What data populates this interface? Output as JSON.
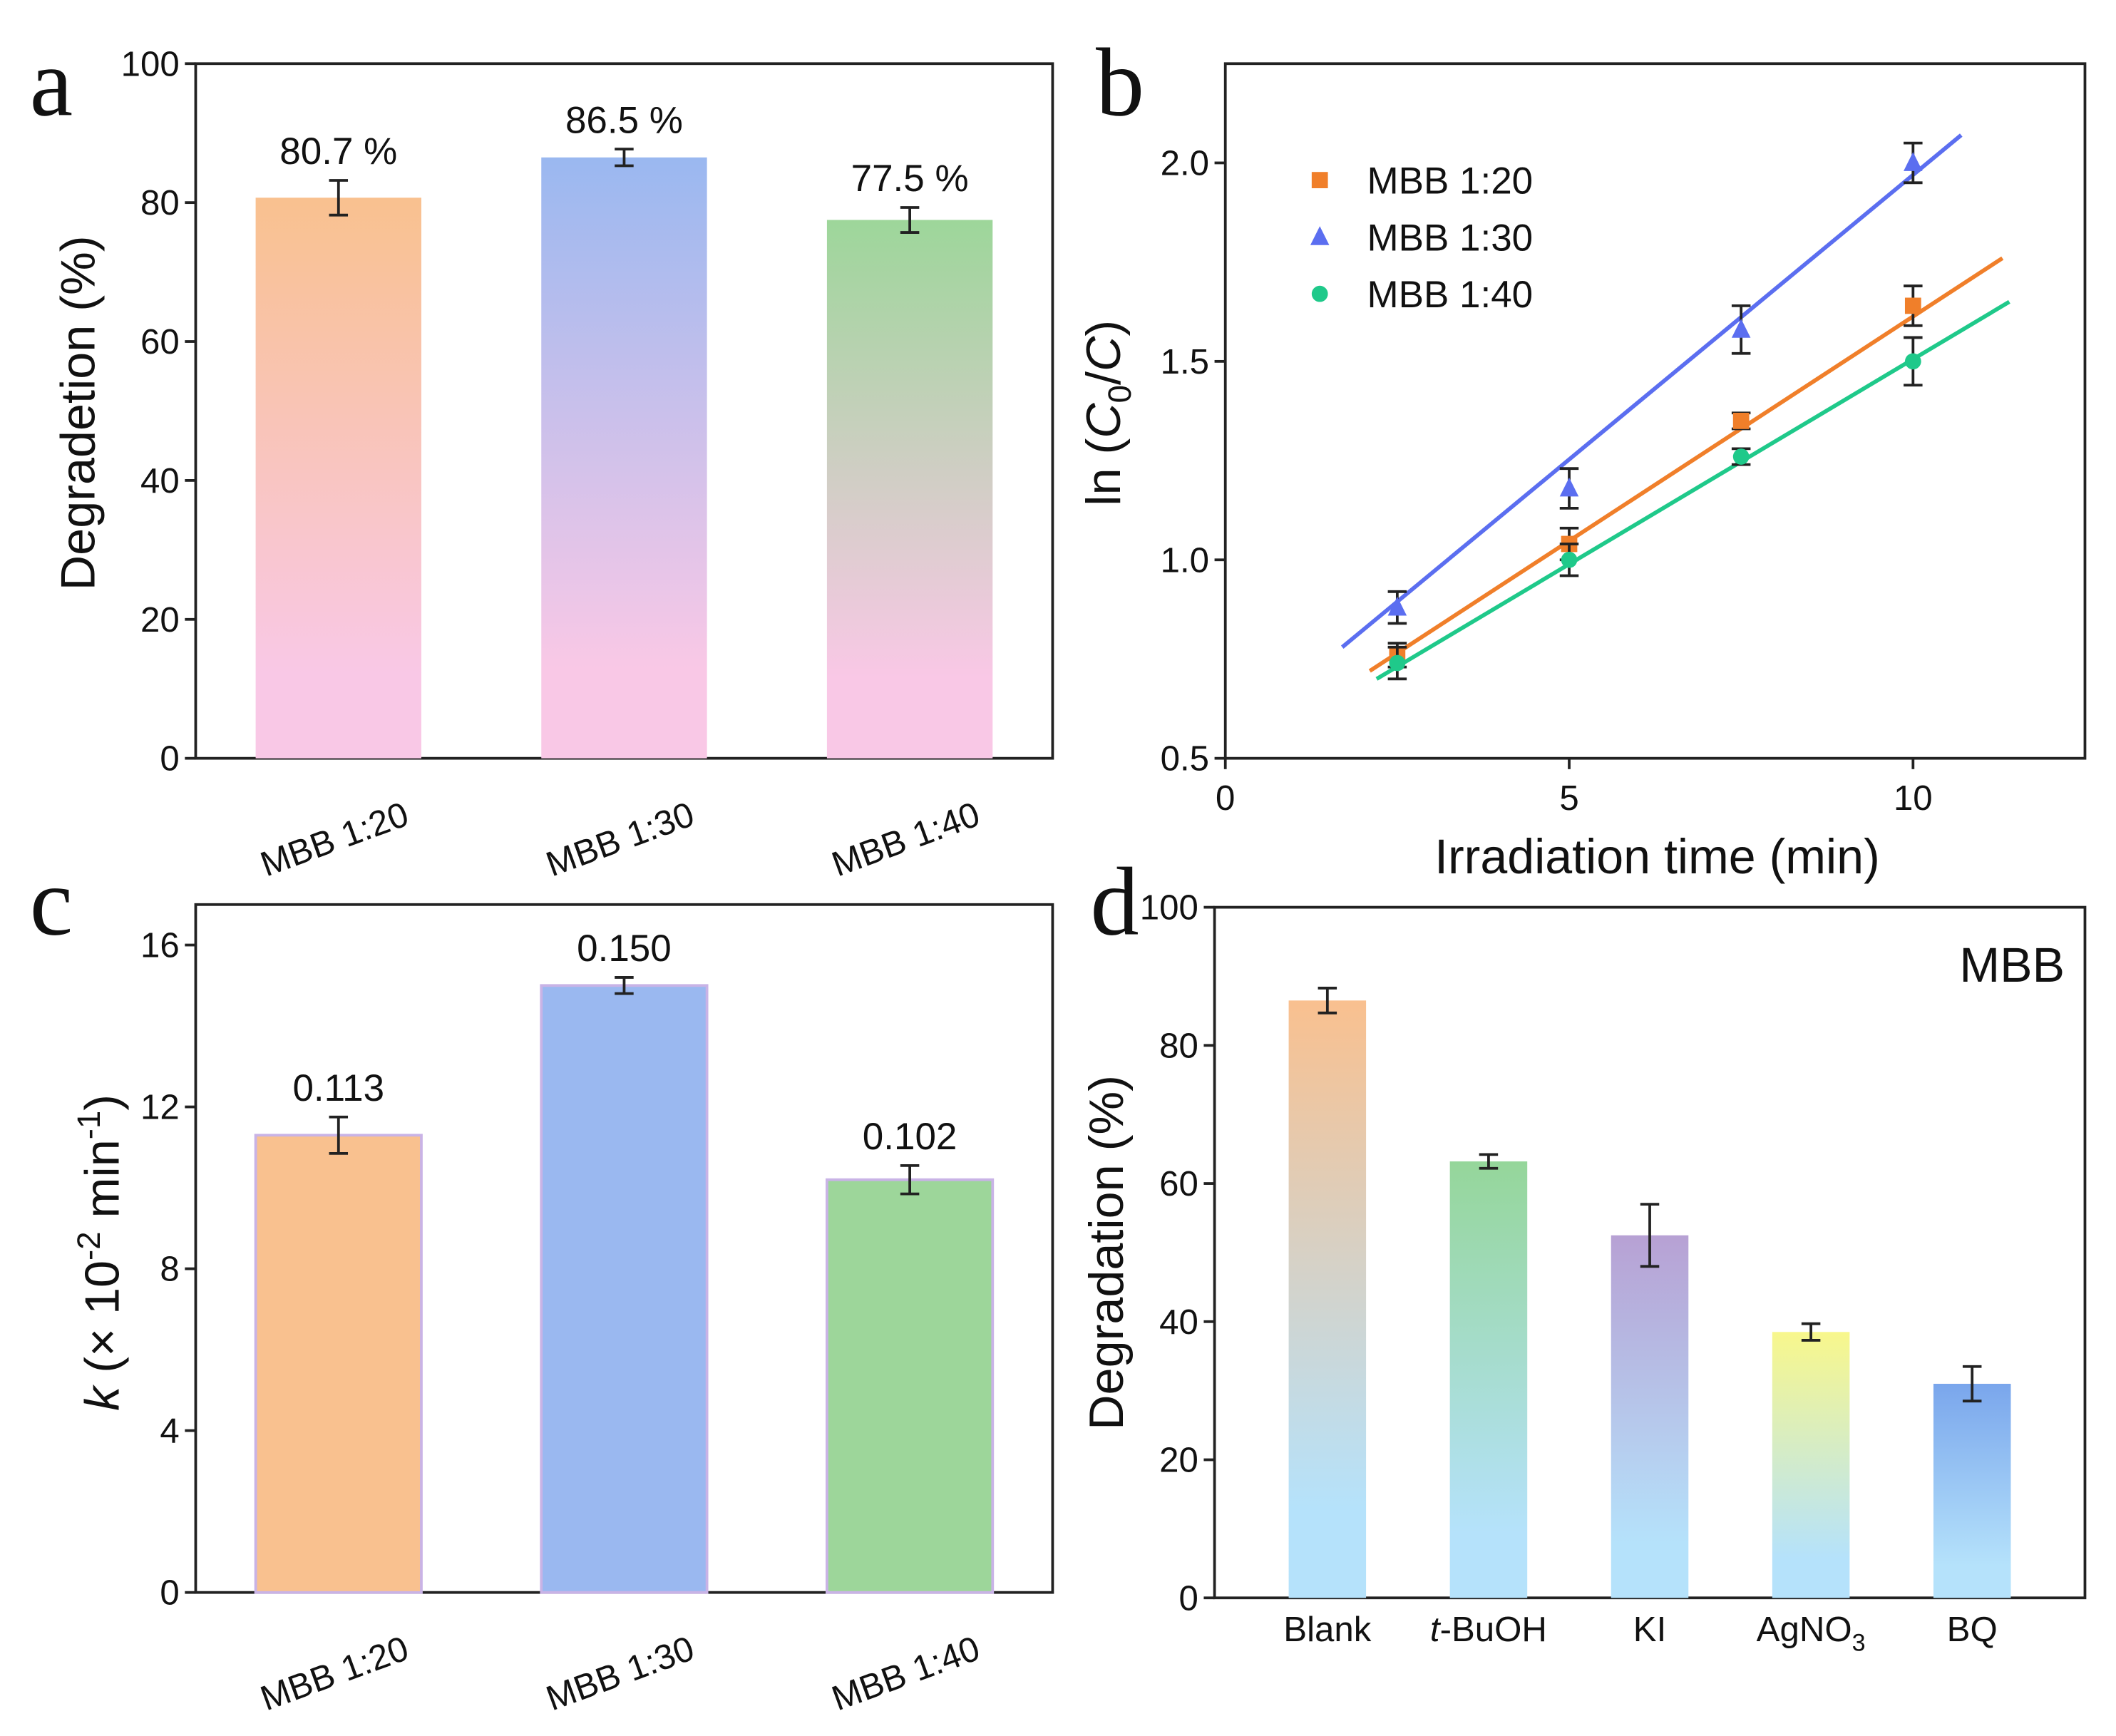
{
  "chart_data": [
    {
      "type": "bar",
      "panel": "a",
      "ylabel": "Degradetion (%)",
      "categories": [
        "MBB 1:20",
        "MBB 1:30",
        "MBB 1:40"
      ],
      "values": [
        80.7,
        86.5,
        77.5
      ],
      "value_labels": [
        "80.7 %",
        "86.5 %",
        "77.5 %"
      ],
      "errors": [
        2.5,
        1.2,
        1.8
      ],
      "colors": [
        "#f9c18f",
        "#9ab8f0",
        "#9dd69a"
      ],
      "gradient_bottom": "#f9c8e6",
      "ylim": [
        0,
        100
      ],
      "yticks": [
        0,
        20,
        40,
        60,
        80,
        100
      ]
    },
    {
      "type": "scatter",
      "panel": "b",
      "xlabel": "Irradiation time (min)",
      "ylabel_parts": [
        "ln (",
        "C",
        "0",
        "/",
        "C",
        ")"
      ],
      "x": [
        2.5,
        5,
        7.5,
        10
      ],
      "series": [
        {
          "name": "MBB 1:20",
          "color": "#f07f2a",
          "marker": "square",
          "values": [
            0.76,
            1.04,
            1.35,
            1.64
          ],
          "errors": [
            0.03,
            0.04,
            0.02,
            0.05
          ],
          "fit_x": [
            2.1,
            11.3
          ],
          "fit_values": [
            0.72,
            1.76
          ]
        },
        {
          "name": "MBB 1:30",
          "color": "#5b6ef0",
          "marker": "triangle",
          "values": [
            0.88,
            1.18,
            1.58,
            2.0
          ],
          "errors": [
            0.04,
            0.05,
            0.06,
            0.05
          ],
          "fit_x": [
            1.7,
            10.7
          ],
          "fit_values": [
            0.78,
            2.07
          ]
        },
        {
          "name": "MBB 1:40",
          "color": "#1fc98a",
          "marker": "circle",
          "values": [
            0.74,
            1.0,
            1.26,
            1.5
          ],
          "errors": [
            0.04,
            0.04,
            0.02,
            0.06
          ],
          "fit_x": [
            2.2,
            11.4
          ],
          "fit_values": [
            0.7,
            1.65
          ]
        }
      ],
      "legend": "upper left",
      "xlim": [
        0,
        12.5
      ],
      "xticks": [
        0,
        5,
        10
      ],
      "ylim": [
        0.5,
        2.25
      ],
      "yticks": [
        {
          "value": 0.5,
          "label": "0.5"
        },
        {
          "value": 1,
          "label": "1.0"
        },
        {
          "value": 1.5,
          "label": "1.5"
        },
        {
          "value": 2,
          "label": "2.0"
        }
      ]
    },
    {
      "type": "bar",
      "panel": "c",
      "ylabel_parts": [
        "k",
        " (× 10",
        "-2",
        " min",
        "-1",
        ")"
      ],
      "categories": [
        "MBB 1:20",
        "MBB 1:30",
        "MBB 1:40"
      ],
      "values": [
        11.3,
        15.0,
        10.2
      ],
      "value_labels": [
        "0.113",
        "0.150",
        "0.102"
      ],
      "errors": [
        0.45,
        0.2,
        0.35
      ],
      "colors": [
        "#f9c18f",
        "#9ab8f0",
        "#9dd69a"
      ],
      "ylim": [
        0,
        17
      ],
      "yticks": [
        0,
        4,
        8,
        12,
        16
      ]
    },
    {
      "type": "bar",
      "panel": "d",
      "ylabel": "Degradation (%)",
      "annotation": "MBB",
      "categories": [
        "Blank",
        "t-BuOH",
        "KI",
        "AgNO3",
        "BQ"
      ],
      "values": [
        86.5,
        63.2,
        52.5,
        38.5,
        31
      ],
      "errors": [
        1.8,
        1,
        4.5,
        1.2,
        2.5
      ],
      "colors": [
        "#f9c08f",
        "#95d69a",
        "#b7a1d4",
        "#f8f78c",
        "#7aa6ec"
      ],
      "gradient_bottom": "#b5e2fb",
      "ylim": [
        0,
        100
      ],
      "yticks": [
        0,
        20,
        40,
        60,
        80,
        100
      ]
    }
  ]
}
